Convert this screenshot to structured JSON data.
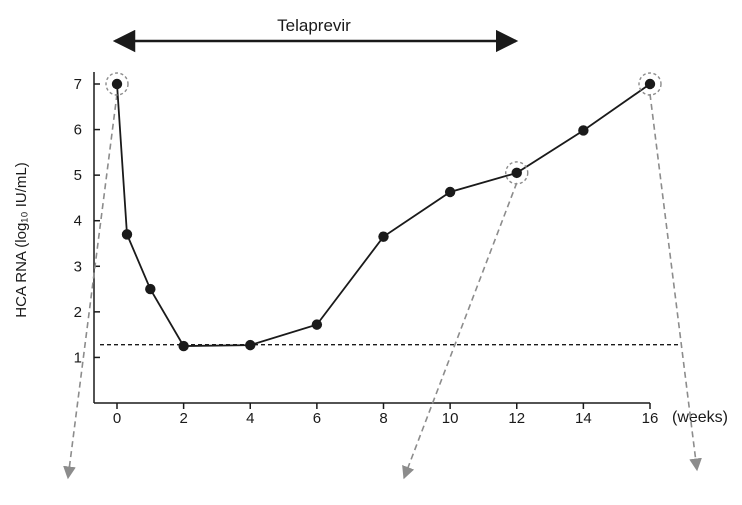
{
  "chart_data": {
    "type": "line",
    "ylabel": "HCA RNA (log₁₀ IU/mL)",
    "xunit": "(weeks)",
    "annotation": "Telaprevir",
    "annotation_range": [
      0,
      12
    ],
    "xlim": [
      0,
      16
    ],
    "ylim": [
      0,
      7
    ],
    "xticks": [
      0,
      2,
      4,
      6,
      8,
      10,
      12,
      14,
      16
    ],
    "yticks": [
      1,
      2,
      3,
      4,
      5,
      6,
      7
    ],
    "series": [
      {
        "x": [
          0,
          0.3,
          1,
          2,
          4,
          6,
          8,
          10,
          12,
          14,
          16
        ],
        "y": [
          7.0,
          3.7,
          2.5,
          1.25,
          1.27,
          1.72,
          3.65,
          4.63,
          5.05,
          5.98,
          7.0
        ]
      }
    ],
    "threshold": {
      "y": 1.28,
      "style": "dashed"
    },
    "highlighted_points": [
      {
        "x": 0,
        "y": 7.0
      },
      {
        "x": 12,
        "y": 5.05
      },
      {
        "x": 16,
        "y": 7.0
      }
    ],
    "grid": false,
    "colors": {
      "line": "#1a1a1a",
      "marker": "#1a1a1a",
      "dashed_arrow": "#8c8c8c"
    }
  }
}
